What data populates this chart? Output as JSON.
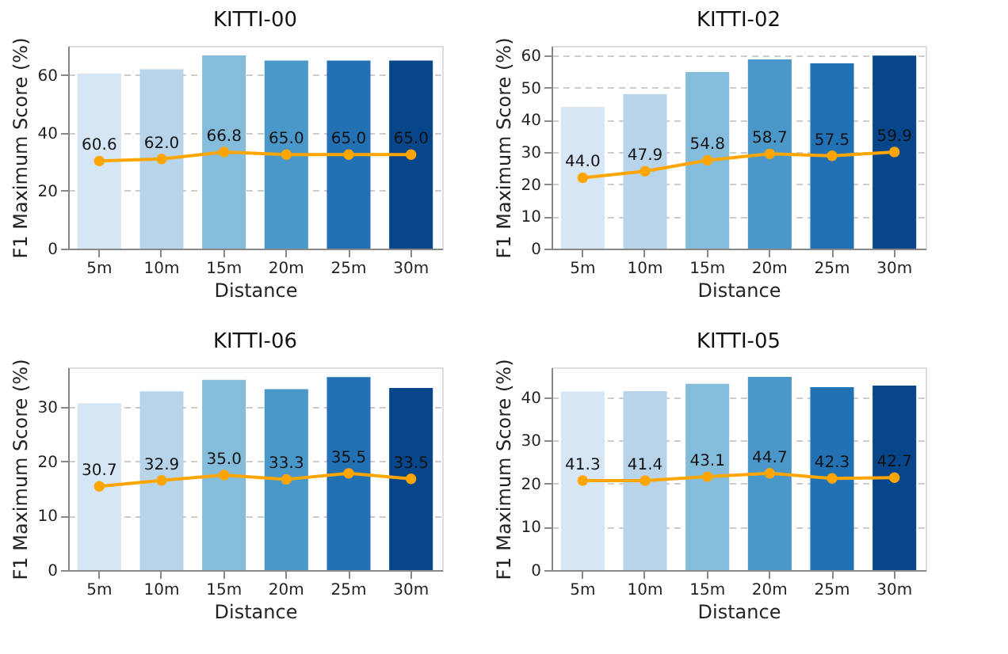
{
  "chart_data": [
    {
      "type": "bar",
      "title": "KITTI-00",
      "xlabel": "Distance",
      "ylabel": "F1 Maximum Score (%)",
      "categories": [
        "5m",
        "10m",
        "15m",
        "20m",
        "25m",
        "30m"
      ],
      "ylim": [
        0,
        70.1
      ],
      "yticks": [
        0,
        20,
        40,
        60
      ],
      "grid": "y",
      "series": [
        {
          "type": "bar",
          "colors": [
            "#d6e6f4",
            "#b7d4ea",
            "#84bcdb",
            "#4a98c9",
            "#2271b5",
            "#08468b"
          ],
          "values": [
            60.6,
            62.0,
            66.8,
            65.0,
            65.0,
            65.0
          ],
          "value_labels": [
            "60.6",
            "62.0",
            "66.8",
            "65.0",
            "65.0",
            "65.0"
          ]
        },
        {
          "type": "line",
          "color": "#ffa500",
          "marker": "circle",
          "values": [
            30.3,
            31.0,
            33.4,
            32.5,
            32.5,
            32.5
          ]
        }
      ]
    },
    {
      "type": "bar",
      "title": "KITTI-02",
      "xlabel": "Distance",
      "ylabel": "F1 Maximum Score (%)",
      "categories": [
        "5m",
        "10m",
        "15m",
        "20m",
        "25m",
        "30m"
      ],
      "ylim": [
        0,
        62.9
      ],
      "yticks": [
        0,
        10,
        20,
        30,
        40,
        50,
        60
      ],
      "grid": "y",
      "series": [
        {
          "type": "bar",
          "colors": [
            "#d6e6f4",
            "#b7d4ea",
            "#84bcdb",
            "#4a98c9",
            "#2271b5",
            "#08468b"
          ],
          "values": [
            44.0,
            47.9,
            54.8,
            58.7,
            57.5,
            59.9
          ],
          "value_labels": [
            "44.0",
            "47.9",
            "54.8",
            "58.7",
            "57.5",
            "59.9"
          ]
        },
        {
          "type": "line",
          "color": "#ffa500",
          "marker": "circle",
          "values": [
            22.0,
            24.0,
            27.4,
            29.4,
            28.8,
            30.0
          ]
        }
      ]
    },
    {
      "type": "bar",
      "title": "KITTI-06",
      "xlabel": "Distance",
      "ylabel": "F1 Maximum Score (%)",
      "categories": [
        "5m",
        "10m",
        "15m",
        "20m",
        "25m",
        "30m"
      ],
      "ylim": [
        0,
        37.3
      ],
      "yticks": [
        0,
        10,
        20,
        30
      ],
      "grid": "y",
      "series": [
        {
          "type": "bar",
          "colors": [
            "#d6e6f4",
            "#b7d4ea",
            "#84bcdb",
            "#4a98c9",
            "#2271b5",
            "#08468b"
          ],
          "values": [
            30.7,
            32.9,
            35.0,
            33.3,
            35.5,
            33.5
          ],
          "value_labels": [
            "30.7",
            "32.9",
            "35.0",
            "33.3",
            "35.5",
            "33.5"
          ]
        },
        {
          "type": "line",
          "color": "#ffa500",
          "marker": "circle",
          "values": [
            15.4,
            16.5,
            17.5,
            16.7,
            17.8,
            16.8
          ]
        }
      ]
    },
    {
      "type": "bar",
      "title": "KITTI-05",
      "xlabel": "Distance",
      "ylabel": "F1 Maximum Score (%)",
      "categories": [
        "5m",
        "10m",
        "15m",
        "20m",
        "25m",
        "30m"
      ],
      "ylim": [
        0,
        46.9
      ],
      "yticks": [
        0,
        10,
        20,
        30,
        40
      ],
      "grid": "y",
      "series": [
        {
          "type": "bar",
          "colors": [
            "#d6e6f4",
            "#b7d4ea",
            "#84bcdb",
            "#4a98c9",
            "#2271b5",
            "#08468b"
          ],
          "values": [
            41.3,
            41.4,
            43.1,
            44.7,
            42.3,
            42.7
          ],
          "value_labels": [
            "41.3",
            "41.4",
            "43.1",
            "44.7",
            "42.3",
            "42.7"
          ]
        },
        {
          "type": "line",
          "color": "#ffa500",
          "marker": "circle",
          "values": [
            20.7,
            20.7,
            21.6,
            22.4,
            21.2,
            21.4
          ]
        }
      ]
    }
  ]
}
